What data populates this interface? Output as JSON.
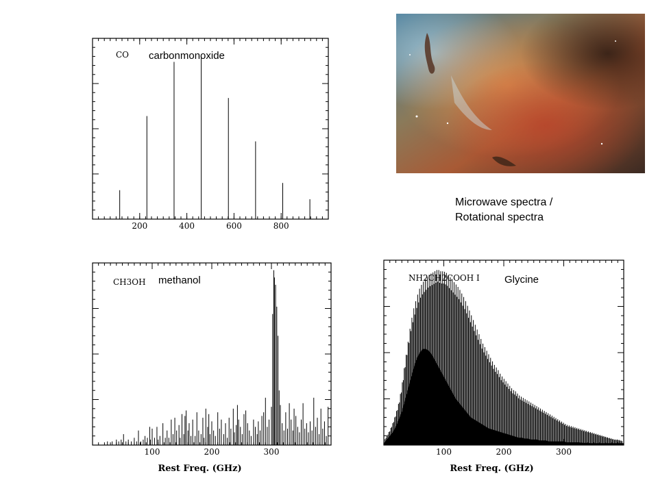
{
  "caption": {
    "line1": "Microwave spectra /",
    "line2": "Rotational spectra"
  },
  "chart_data": [
    {
      "type": "bar",
      "species_label": "CO",
      "name_label": "carbonmonoxide",
      "x": [
        115.27,
        230.54,
        345.8,
        461.04,
        576.27,
        691.47,
        806.65,
        921.8
      ],
      "values": [
        0.16,
        0.57,
        0.87,
        0.9,
        0.67,
        0.43,
        0.2,
        0.11
      ],
      "xlim": [
        0,
        1000
      ],
      "ylim": [
        0,
        1.0
      ],
      "xticks": [
        200,
        400,
        600,
        800
      ],
      "xlabel": ""
    },
    {
      "type": "bar",
      "species_label": "CH3OH",
      "name_label": "methanol",
      "xlim": [
        0,
        400
      ],
      "ylim": [
        0,
        1.0
      ],
      "xticks": [
        100,
        200,
        300
      ],
      "xlabel": "Rest Freq. (GHz)",
      "x": [
        25,
        33,
        40,
        44,
        48,
        52,
        56,
        60,
        65,
        70,
        74,
        77,
        81,
        85,
        88,
        92,
        96,
        97,
        100,
        104,
        108,
        110,
        113,
        118,
        122,
        125,
        128,
        132,
        135,
        138,
        141,
        145,
        147,
        150,
        153,
        155,
        157,
        160,
        162,
        165,
        168,
        172,
        175,
        178,
        182,
        185,
        187,
        190,
        193,
        195,
        197,
        200,
        203,
        206,
        210,
        213,
        216,
        220,
        223,
        226,
        229,
        232,
        236,
        238,
        241,
        243,
        245,
        248,
        251,
        254,
        257,
        260,
        263,
        266,
        270,
        273,
        276,
        278,
        281,
        284,
        287,
        290,
        293,
        296,
        300,
        302,
        304,
        305,
        307,
        309,
        311,
        313,
        315,
        318,
        321,
        324,
        327,
        330,
        333,
        336,
        338,
        341,
        344,
        347,
        350,
        353,
        356,
        359,
        362,
        365,
        368,
        371,
        374,
        377,
        380,
        383,
        386,
        389,
        392,
        395
      ],
      "values": [
        0.02,
        0.02,
        0.03,
        0.02,
        0.03,
        0.06,
        0.02,
        0.03,
        0.02,
        0.04,
        0.02,
        0.08,
        0.02,
        0.03,
        0.05,
        0.04,
        0.1,
        0.03,
        0.09,
        0.04,
        0.1,
        0.03,
        0.05,
        0.12,
        0.04,
        0.08,
        0.04,
        0.14,
        0.06,
        0.15,
        0.08,
        0.11,
        0.04,
        0.17,
        0.06,
        0.16,
        0.19,
        0.08,
        0.12,
        0.05,
        0.14,
        0.05,
        0.18,
        0.08,
        0.06,
        0.15,
        0.04,
        0.2,
        0.1,
        0.17,
        0.06,
        0.13,
        0.08,
        0.05,
        0.18,
        0.09,
        0.14,
        0.06,
        0.12,
        0.04,
        0.15,
        0.09,
        0.2,
        0.07,
        0.11,
        0.22,
        0.14,
        0.1,
        0.06,
        0.17,
        0.19,
        0.12,
        0.08,
        0.05,
        0.14,
        0.1,
        0.06,
        0.13,
        0.08,
        0.16,
        0.18,
        0.26,
        0.1,
        0.14,
        0.21,
        0.72,
        0.96,
        0.92,
        0.88,
        0.76,
        0.6,
        0.3,
        0.22,
        0.12,
        0.08,
        0.18,
        0.09,
        0.23,
        0.14,
        0.08,
        0.2,
        0.16,
        0.1,
        0.07,
        0.14,
        0.23,
        0.09,
        0.12,
        0.07,
        0.13,
        0.08,
        0.26,
        0.1,
        0.15,
        0.06,
        0.2,
        0.09,
        0.13,
        0.05,
        0.21
      ]
    },
    {
      "type": "bar",
      "species_label": "NH2CH2COOH I",
      "name_label": "Glycine",
      "xlim": [
        0,
        400
      ],
      "ylim": [
        0,
        1.0
      ],
      "xticks": [
        100,
        200,
        300
      ],
      "xlabel": "Rest Freq. (GHz)",
      "envelope": {
        "x": [
          0,
          5,
          10,
          15,
          20,
          25,
          30,
          35,
          40,
          45,
          50,
          55,
          60,
          65,
          70,
          75,
          80,
          85,
          90,
          95,
          100,
          105,
          110,
          115,
          120,
          125,
          130,
          135,
          140,
          145,
          150,
          155,
          160,
          165,
          170,
          175,
          180,
          185,
          190,
          195,
          200,
          205,
          210,
          215,
          220,
          225,
          230,
          235,
          240,
          245,
          250,
          255,
          260,
          265,
          270,
          275,
          280,
          285,
          290,
          295,
          300,
          305,
          310,
          315,
          320,
          325,
          330,
          335,
          340,
          345,
          350,
          355,
          360,
          365,
          370,
          375,
          380,
          385,
          390,
          395,
          400
        ],
        "upper": [
          0.02,
          0.05,
          0.08,
          0.12,
          0.17,
          0.23,
          0.32,
          0.44,
          0.55,
          0.66,
          0.74,
          0.8,
          0.85,
          0.88,
          0.9,
          0.92,
          0.93,
          0.94,
          0.95,
          0.94,
          0.94,
          0.93,
          0.91,
          0.89,
          0.87,
          0.85,
          0.82,
          0.79,
          0.75,
          0.71,
          0.67,
          0.63,
          0.59,
          0.55,
          0.52,
          0.49,
          0.46,
          0.43,
          0.41,
          0.38,
          0.36,
          0.34,
          0.32,
          0.3,
          0.29,
          0.27,
          0.26,
          0.25,
          0.24,
          0.23,
          0.22,
          0.21,
          0.2,
          0.19,
          0.18,
          0.17,
          0.16,
          0.15,
          0.14,
          0.13,
          0.12,
          0.11,
          0.105,
          0.1,
          0.095,
          0.09,
          0.085,
          0.08,
          0.075,
          0.07,
          0.065,
          0.06,
          0.055,
          0.05,
          0.045,
          0.04,
          0.035,
          0.03,
          0.03,
          0.025,
          0.02
        ],
        "lower": [
          0.01,
          0.03,
          0.05,
          0.07,
          0.1,
          0.14,
          0.18,
          0.24,
          0.3,
          0.36,
          0.42,
          0.47,
          0.5,
          0.52,
          0.52,
          0.51,
          0.49,
          0.46,
          0.43,
          0.4,
          0.37,
          0.34,
          0.31,
          0.28,
          0.25,
          0.23,
          0.21,
          0.19,
          0.17,
          0.15,
          0.14,
          0.13,
          0.12,
          0.11,
          0.1,
          0.09,
          0.085,
          0.08,
          0.075,
          0.07,
          0.065,
          0.06,
          0.055,
          0.05,
          0.045,
          0.04,
          0.04,
          0.035,
          0.035,
          0.03,
          0.03,
          0.03,
          0.025,
          0.025,
          0.025,
          0.02,
          0.02,
          0.02,
          0.02,
          0.02,
          0.02,
          0.015,
          0.015,
          0.015,
          0.015,
          0.015,
          0.012,
          0.012,
          0.012,
          0.01,
          0.01,
          0.01,
          0.01,
          0.01,
          0.01,
          0.01,
          0.01,
          0.01,
          0.01,
          0.01,
          0.01
        ]
      }
    }
  ]
}
